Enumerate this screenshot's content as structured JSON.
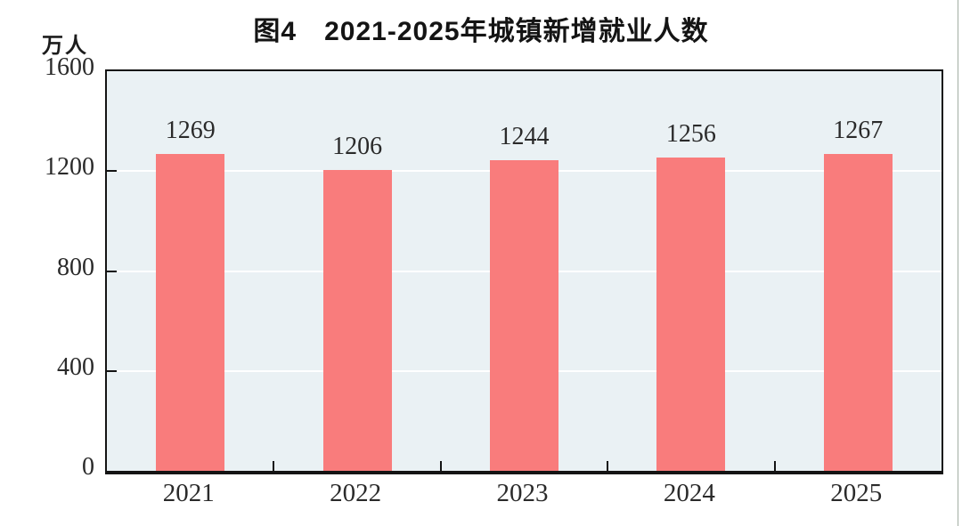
{
  "page": {
    "title": "图4　2021-2025年城镇新增就业人数",
    "unit_label": "万人"
  },
  "chart_data": {
    "type": "bar",
    "title": "图4　2021-2025年城镇新增就业人数",
    "ylabel": "万人",
    "xlabel": "",
    "categories": [
      "2021",
      "2022",
      "2023",
      "2024",
      "2025"
    ],
    "values": [
      1269,
      1206,
      1244,
      1256,
      1267
    ],
    "ylim": [
      0,
      1600
    ],
    "yticks": [
      0,
      400,
      800,
      1200,
      1600
    ],
    "grid": "horizontal white gridlines at 400, 800, 1200",
    "legend": "none",
    "colors": {
      "bar_fill": "#F97C7C",
      "plot_background": "#EAF1F4",
      "gridline": "#FFFFFF",
      "axis_border": "#141414",
      "text": "#2A2A2A"
    }
  }
}
